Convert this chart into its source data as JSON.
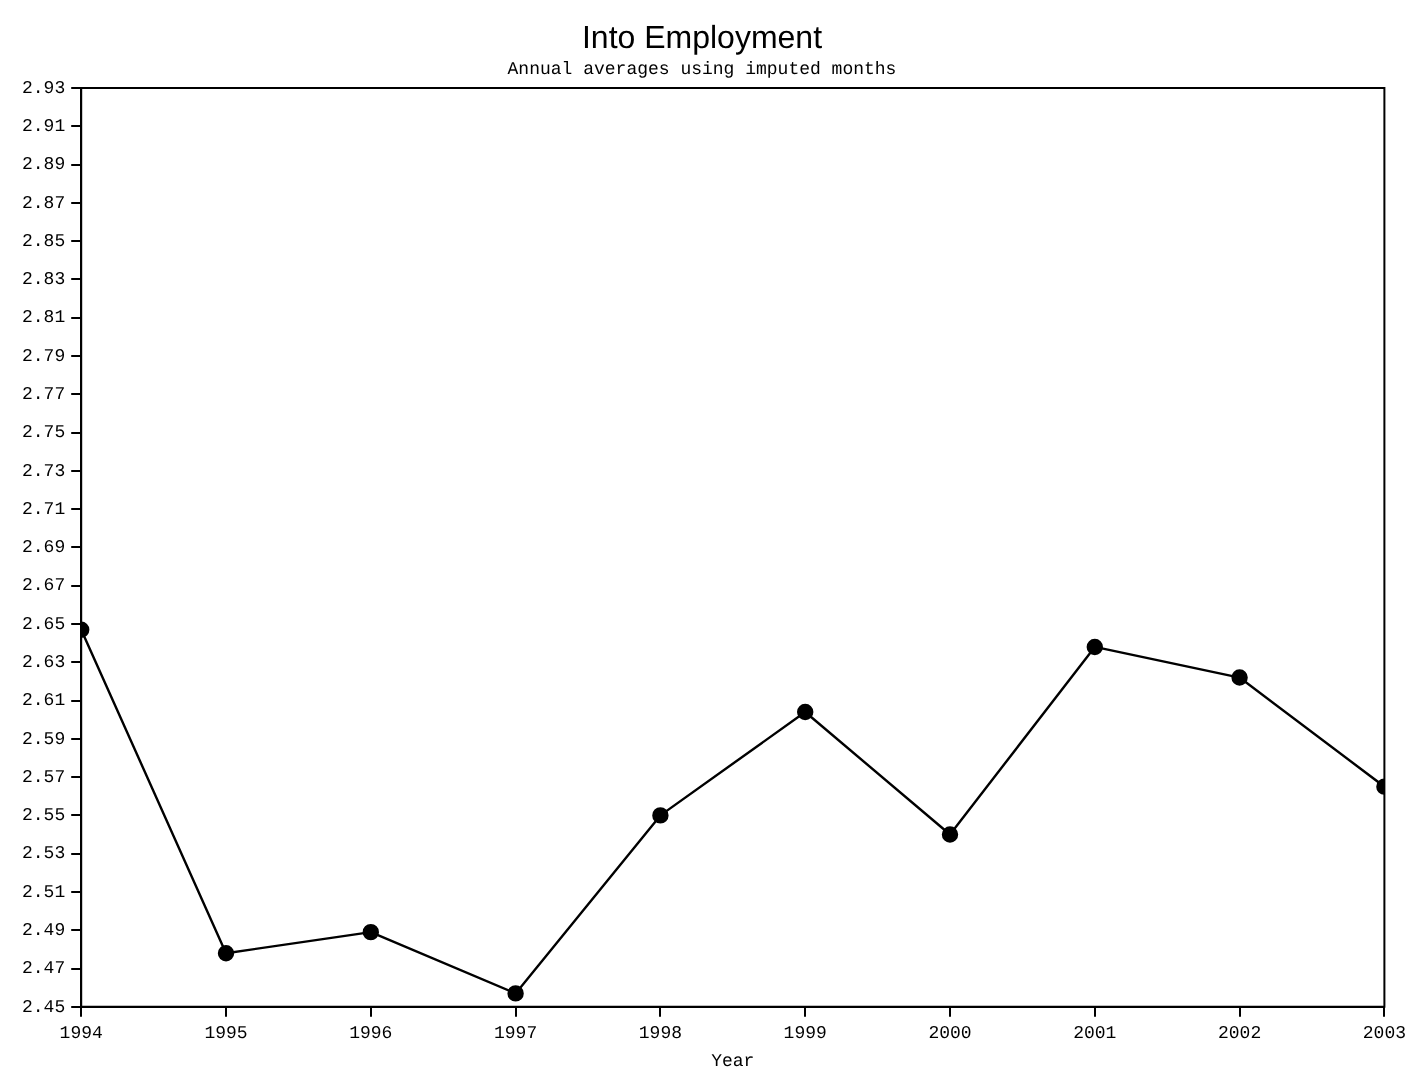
{
  "chart_data": {
    "type": "line",
    "title": "Into Employment",
    "subtitle": "Annual averages using imputed months",
    "xlabel": "Year",
    "x": [
      1994,
      1995,
      1996,
      1997,
      1998,
      1999,
      2000,
      2001,
      2002,
      2003
    ],
    "series": [
      {
        "color": "#000000",
        "values": [
          2.647,
          2.478,
          2.489,
          2.457,
          2.55,
          2.604,
          2.54,
          2.638,
          2.622,
          2.565
        ]
      }
    ],
    "xlim": [
      1994,
      2003
    ],
    "xticks": [
      1994,
      1995,
      1996,
      1997,
      1998,
      1999,
      2000,
      2001,
      2002,
      2003
    ],
    "ylim": [
      2.45,
      2.93
    ],
    "yticks": [
      2.45,
      2.47,
      2.49,
      2.51,
      2.53,
      2.55,
      2.57,
      2.59,
      2.61,
      2.63,
      2.65,
      2.67,
      2.69,
      2.71,
      2.73,
      2.75,
      2.77,
      2.79,
      2.81,
      2.83,
      2.85,
      2.87,
      2.89,
      2.91,
      2.93
    ],
    "grid": false,
    "legend": false,
    "marker": "circle",
    "line_style": "solid"
  }
}
